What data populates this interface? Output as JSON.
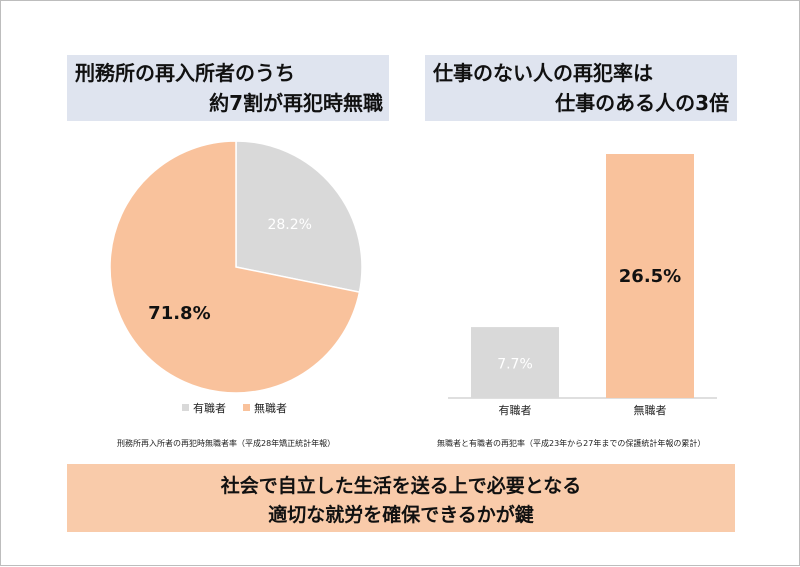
{
  "left_panel": {
    "heading_line1": "刑務所の再入所者のうち",
    "heading_line2": "約7割が再犯時無職",
    "source": "刑務所再入所者の再犯時無職者率（平成28年矯正統計年報）"
  },
  "right_panel": {
    "heading_line1": "仕事のない人の再犯率は",
    "heading_line2": "仕事のある人の3倍",
    "source": "無職者と有職者の再犯率（平成23年から27年までの保護統計年報の累計）"
  },
  "footer": {
    "line1": "社会で自立した生活を送る上で必要となる",
    "line2": "適切な就労を確保できるかが鍵"
  },
  "chart_data": [
    {
      "type": "pie",
      "categories": [
        "有職者",
        "無職者"
      ],
      "values": [
        28.2,
        71.8
      ],
      "labels": [
        "28.2%",
        "71.8%"
      ],
      "colors": [
        "#d9d9d9",
        "#f9c29c"
      ],
      "legend": "bottom"
    },
    {
      "type": "bar",
      "categories": [
        "有職者",
        "無職者"
      ],
      "values": [
        7.7,
        26.5
      ],
      "labels": [
        "7.7%",
        "26.5%"
      ],
      "colors": [
        "#d9d9d9",
        "#f9c29c"
      ]
    }
  ]
}
